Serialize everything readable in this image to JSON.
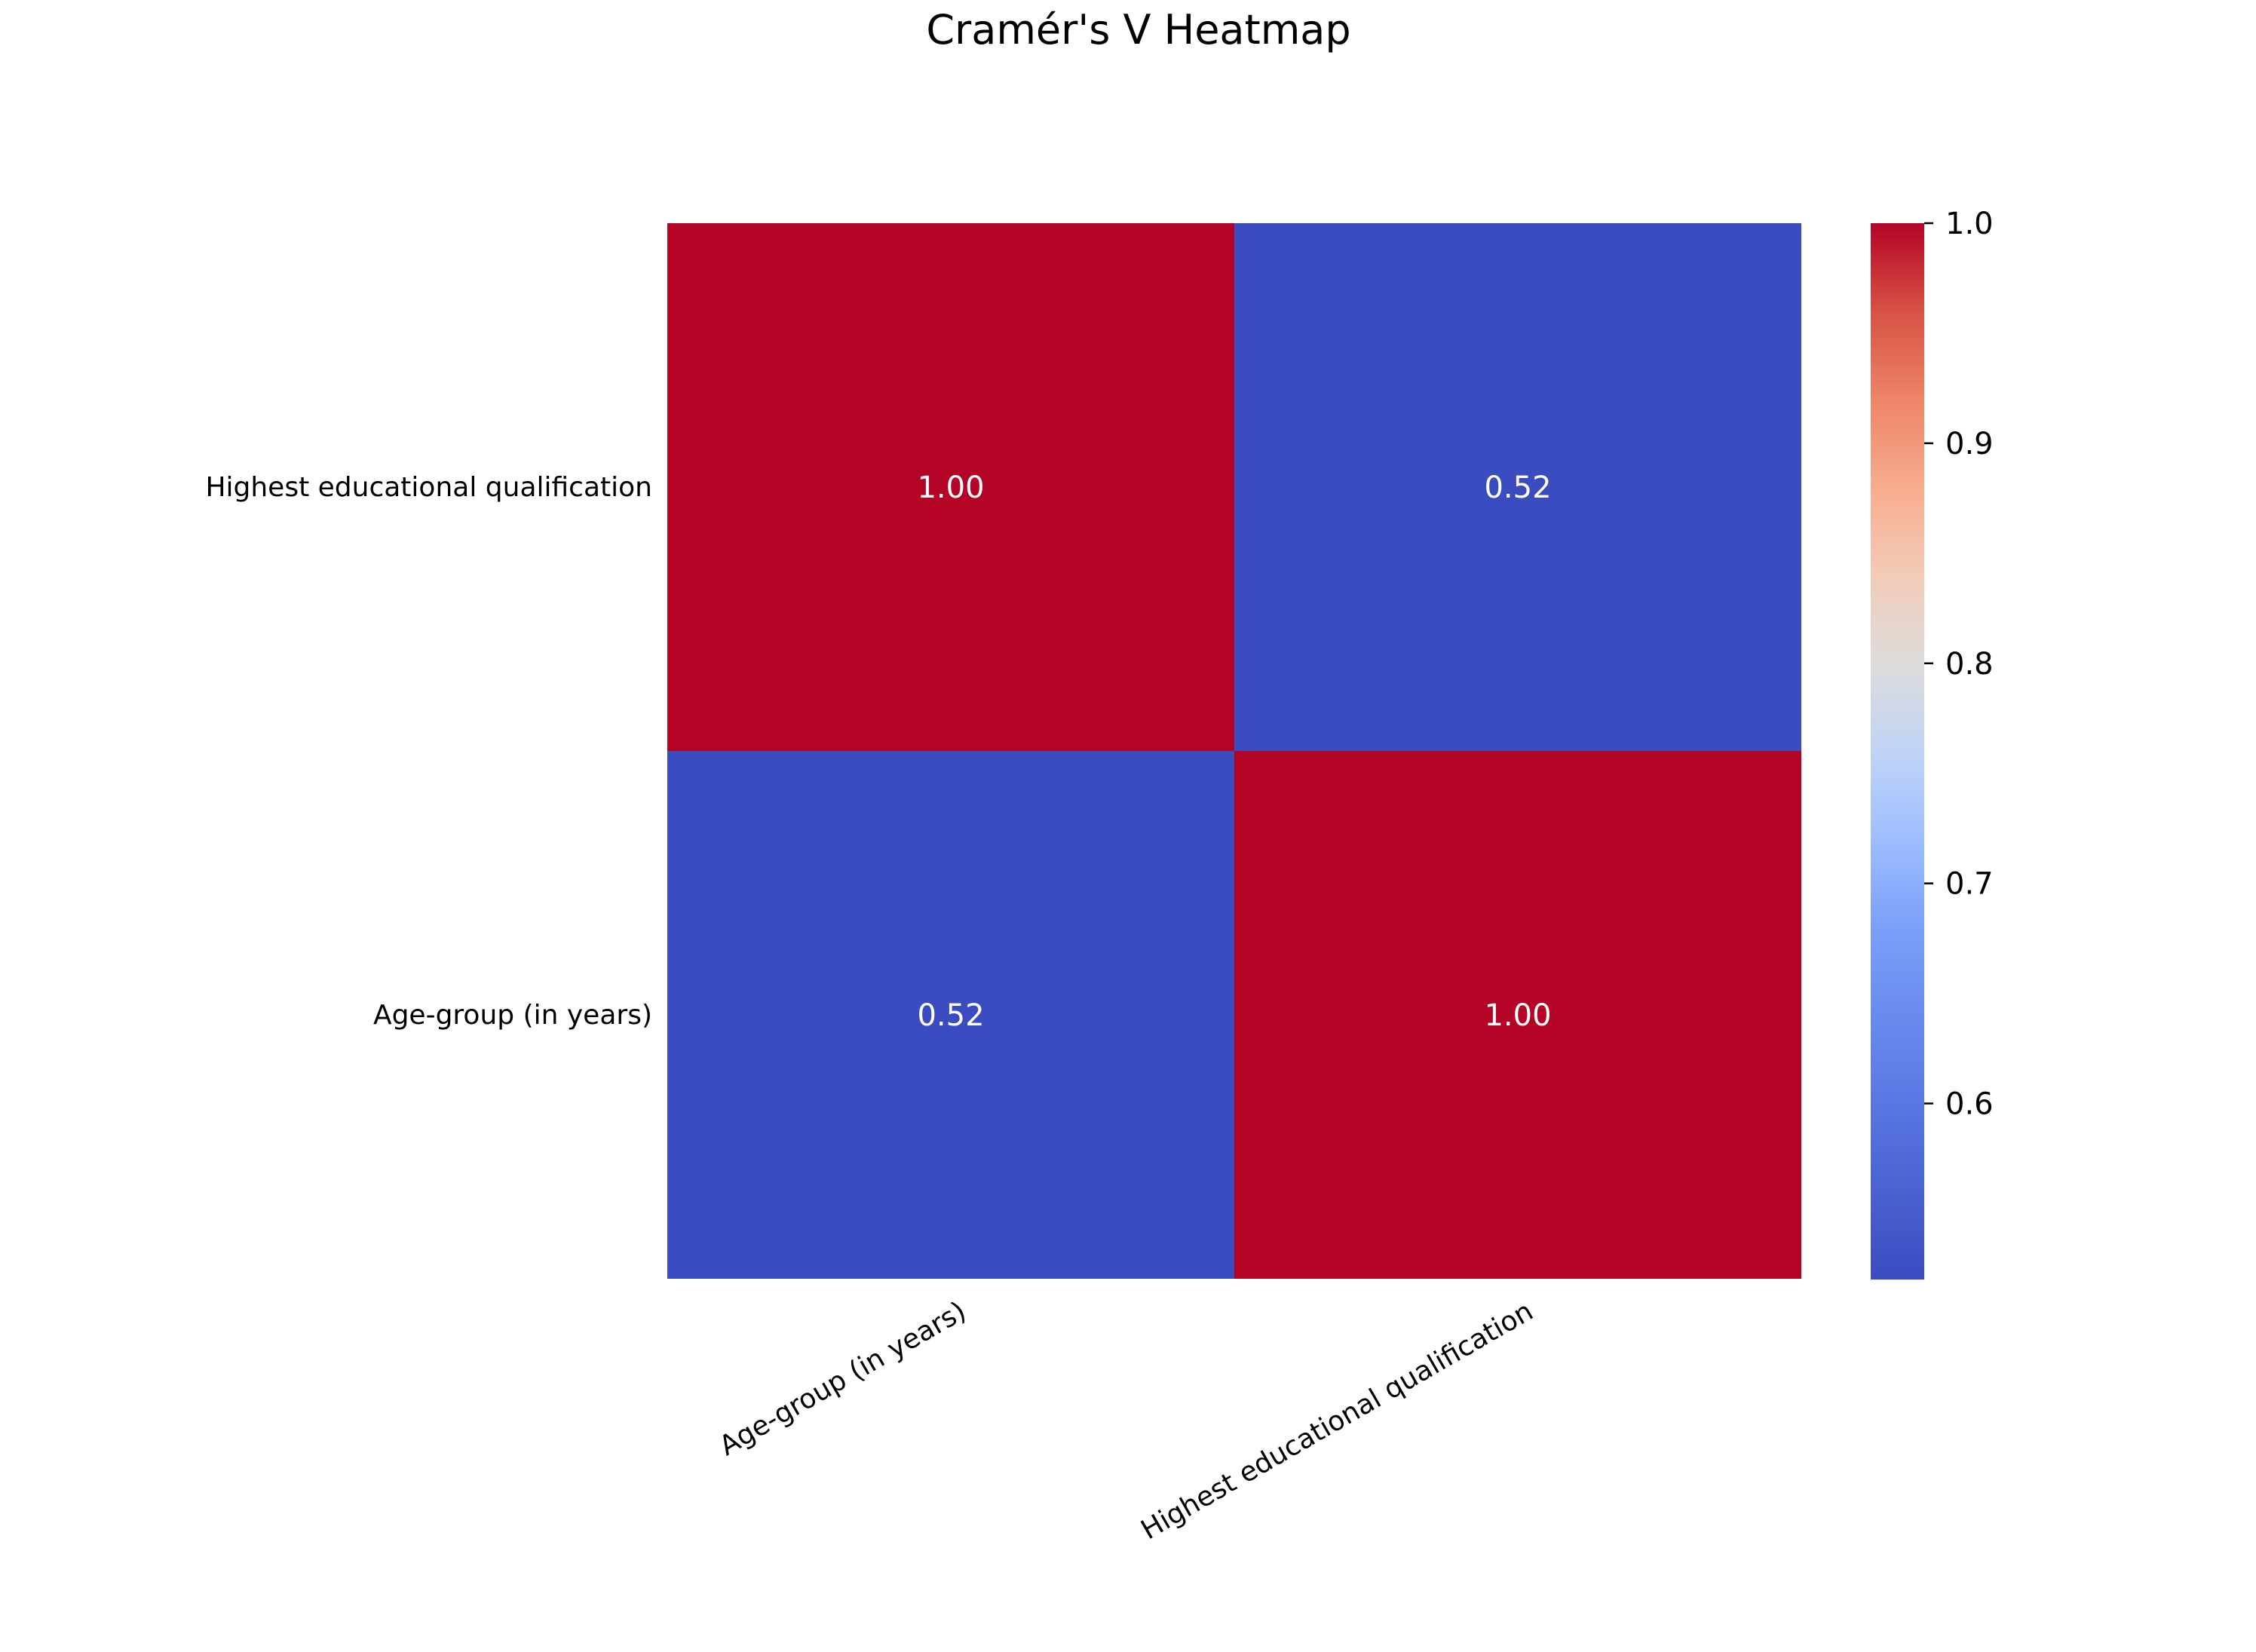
{
  "chart_data": {
    "type": "heatmap",
    "title": "Cramér's V Heatmap",
    "x_categories": [
      "Age-group (in years)",
      "Highest educational qualification"
    ],
    "y_categories": [
      "Highest educational qualification",
      "Age-group (in years)"
    ],
    "values": [
      [
        1.0,
        0.52
      ],
      [
        0.52,
        1.0
      ]
    ],
    "annotations": [
      [
        "1.00",
        "0.52"
      ],
      [
        "0.52",
        "1.00"
      ]
    ],
    "colormap": "coolwarm",
    "colorbar": {
      "range": [
        0.52,
        1.0
      ],
      "ticks": [
        0.6,
        0.7,
        0.8,
        0.9,
        1.0
      ],
      "tick_labels": [
        "0.6",
        "0.7",
        "0.8",
        "0.9",
        "1.0"
      ],
      "placement": "right"
    },
    "colors": {
      "low": "#3b4cc0",
      "high": "#b40426"
    }
  }
}
